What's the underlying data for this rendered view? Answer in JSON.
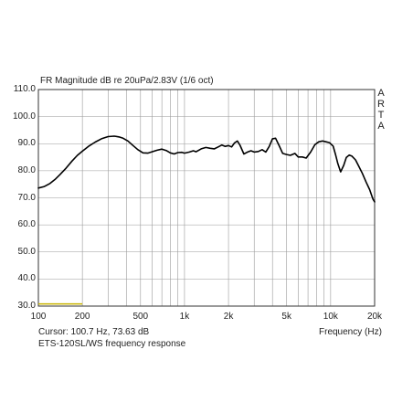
{
  "chart_data": {
    "type": "line",
    "title": "FR Magnitude dB re 20uPa/2.83V (1/6 oct)",
    "xlabel": "Frequency (Hz)",
    "ylabel": "",
    "xscale": "log",
    "xlim": [
      100,
      20000
    ],
    "ylim": [
      30.0,
      110.0
    ],
    "grid": true,
    "y_ticks": [
      "110.0",
      "100.0",
      "90.0",
      "80.0",
      "70.0",
      "60.0",
      "50.0",
      "40.0",
      "30.0"
    ],
    "x_ticks": [
      {
        "value": 100,
        "label": "100"
      },
      {
        "value": 200,
        "label": "200"
      },
      {
        "value": 500,
        "label": "500"
      },
      {
        "value": 1000,
        "label": "1k"
      },
      {
        "value": 2000,
        "label": "2k"
      },
      {
        "value": 5000,
        "label": "5k"
      },
      {
        "value": 10000,
        "label": "10k"
      },
      {
        "value": 20000,
        "label": "20k"
      }
    ],
    "brand_letters": [
      "A",
      "R",
      "T",
      "A"
    ],
    "cursor_text": "Cursor: 100.7 Hz, 73.63 dB",
    "caption": "ETS-120SL/WS frequency response",
    "line_color": "#000000",
    "marker_color": "#c8b400",
    "marker_segment": {
      "x": [
        100,
        200
      ],
      "y": 30.8
    },
    "series": [
      {
        "x": [
          100,
          110,
          120,
          130,
          140,
          155,
          170,
          185,
          200,
          220,
          245,
          270,
          300,
          330,
          355,
          380,
          410,
          440,
          480,
          520,
          560,
          600,
          650,
          700,
          750,
          800,
          850,
          900,
          960,
          1000,
          1080,
          1150,
          1200,
          1300,
          1400,
          1500,
          1600,
          1700,
          1800,
          1900,
          2000,
          2100,
          2200,
          2300,
          2400,
          2550,
          2700,
          2850,
          3000,
          3200,
          3400,
          3600,
          3800,
          4000,
          4200,
          4450,
          4700,
          5000,
          5300,
          5700,
          6000,
          6400,
          6800,
          7300,
          7800,
          8300,
          8800,
          9300,
          9800,
          10400,
          10800,
          11200,
          11700,
          12300,
          12800,
          13400,
          14000,
          14800,
          15500,
          16500,
          17500,
          18500,
          19500,
          20000
        ],
        "y": [
          73.6,
          74.2,
          75.3,
          76.8,
          78.5,
          81.0,
          83.6,
          85.7,
          87.2,
          89.0,
          90.6,
          91.8,
          92.6,
          92.8,
          92.5,
          92.0,
          91.0,
          89.5,
          87.8,
          86.6,
          86.5,
          87.0,
          87.6,
          88.0,
          87.5,
          86.6,
          86.2,
          86.7,
          86.8,
          86.5,
          86.9,
          87.4,
          87.0,
          88.1,
          88.6,
          88.3,
          88.1,
          88.8,
          89.5,
          89.0,
          89.3,
          88.8,
          90.3,
          91.0,
          89.4,
          86.2,
          86.9,
          87.4,
          86.9,
          87.1,
          87.8,
          86.9,
          89.0,
          91.8,
          92.0,
          89.2,
          86.4,
          86.0,
          85.7,
          86.4,
          85.1,
          85.1,
          84.7,
          86.9,
          89.6,
          90.7,
          91.0,
          90.7,
          90.4,
          89.1,
          86.0,
          82.7,
          79.6,
          82.0,
          84.9,
          85.8,
          85.4,
          84.0,
          81.9,
          79.0,
          75.8,
          73.0,
          69.5,
          68.5
        ]
      }
    ]
  }
}
